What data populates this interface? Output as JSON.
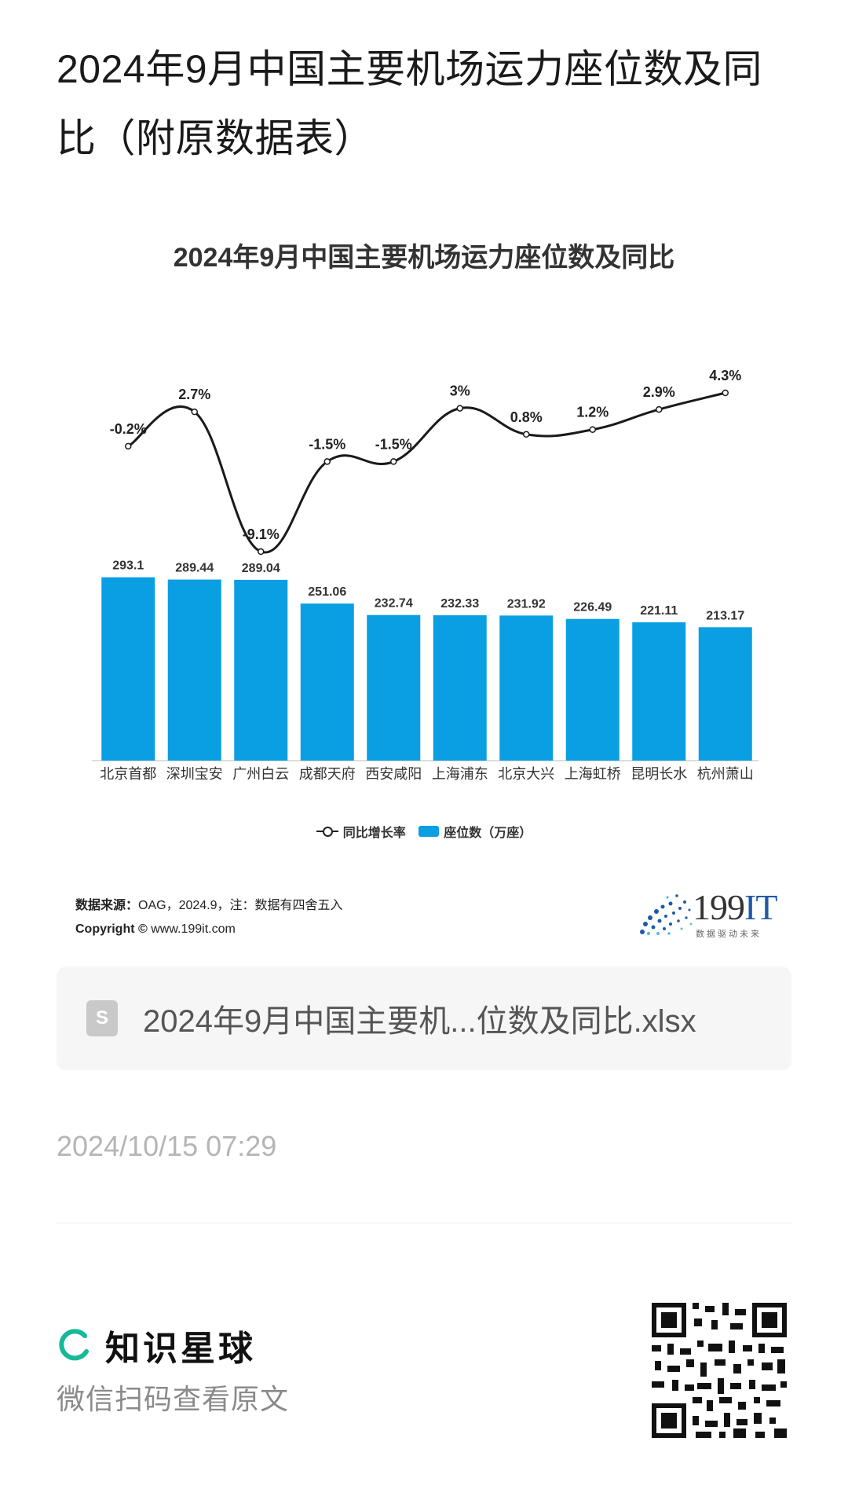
{
  "article": {
    "title": "2024年9月中国主要机场运力座位数及同比（附原数据表）"
  },
  "chart": {
    "title": "2024年9月中国主要机场运力座位数及同比",
    "legend": {
      "line_label": "同比增长率",
      "bar_label": "座位数（万座）"
    },
    "source_label": "数据来源：",
    "source_text": "OAG，2024.9，注：数据有四舍五入",
    "copyright_label": "Copyright ©",
    "copyright_url": "www.199it.com",
    "colors": {
      "bar": "#0a9ee3",
      "line": "#1a1a1a"
    }
  },
  "chart_data": {
    "type": "bar",
    "title": "2024年9月中国主要机场运力座位数及同比",
    "categories": [
      "北京首都",
      "深圳宝安",
      "广州白云",
      "成都天府",
      "西安咸阳",
      "上海浦东",
      "北京大兴",
      "上海虹桥",
      "昆明长水",
      "杭州萧山"
    ],
    "series": [
      {
        "name": "座位数（万座）",
        "type": "bar",
        "values": [
          293.1,
          289.44,
          289.04,
          251.06,
          232.74,
          232.33,
          231.92,
          226.49,
          221.11,
          213.17
        ]
      },
      {
        "name": "同比增长率",
        "type": "line",
        "values": [
          -0.2,
          2.7,
          -9.1,
          -1.5,
          -1.5,
          3,
          0.8,
          1.2,
          2.9,
          4.3
        ],
        "labels": [
          "-0.2%",
          "2.7%",
          "-9.1%",
          "-1.5%",
          "-1.5%",
          "3%",
          "0.8%",
          "1.2%",
          "2.9%",
          "4.3%"
        ]
      }
    ],
    "bar_labels": [
      "293.1",
      "289.44",
      "289.04",
      "251.06",
      "232.74",
      "232.33",
      "231.92",
      "226.49",
      "221.11",
      "213.17"
    ],
    "legend_position": "bottom",
    "grid": false
  },
  "brand_logo": {
    "name": "199IT",
    "name_main": "199",
    "name_accent": "IT",
    "tagline": "数据驱动未来"
  },
  "attachment": {
    "icon": "spreadsheet-file-icon",
    "icon_glyph": "S",
    "file_name": "2024年9月中国主要机...位数及同比.xlsx"
  },
  "meta": {
    "timestamp": "2024/10/15 07:29"
  },
  "footer": {
    "planet_name": "知识星球",
    "scan_hint": "微信扫码查看原文",
    "logo_color": "#16b998"
  }
}
